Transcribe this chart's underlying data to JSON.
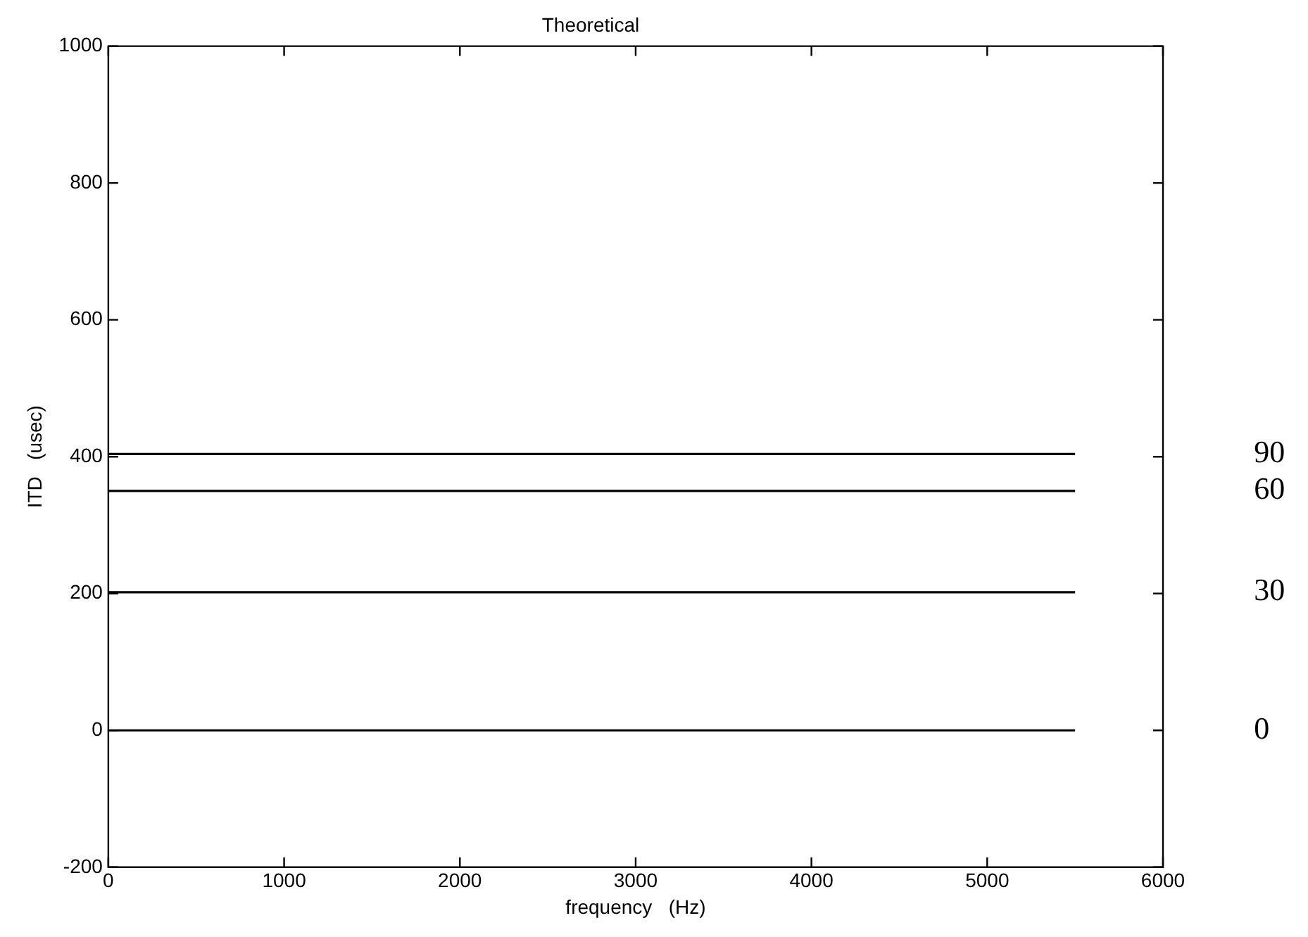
{
  "chart_data": {
    "type": "line",
    "title": "Theoretical",
    "xlabel": "frequency   (Hz)",
    "ylabel": "ITD   (usec)",
    "x": [
      0,
      5500
    ],
    "xlim": [
      0,
      6000
    ],
    "xticks": [
      0,
      1000,
      2000,
      3000,
      4000,
      5000,
      6000
    ],
    "ylim": [
      -200,
      1000
    ],
    "yticks": [
      -200,
      0,
      200,
      400,
      600,
      800,
      1000
    ],
    "grid": false,
    "legend": false,
    "marker": "none",
    "line_style": "solid",
    "series": [
      {
        "name": "90",
        "color": "#000000",
        "values": [
          404,
          404
        ]
      },
      {
        "name": "60",
        "color": "#000000",
        "values": [
          350,
          350
        ]
      },
      {
        "name": "30",
        "color": "#000000",
        "values": [
          202,
          202
        ]
      },
      {
        "name": "0",
        "color": "#000000",
        "values": [
          0,
          0
        ]
      }
    ]
  }
}
